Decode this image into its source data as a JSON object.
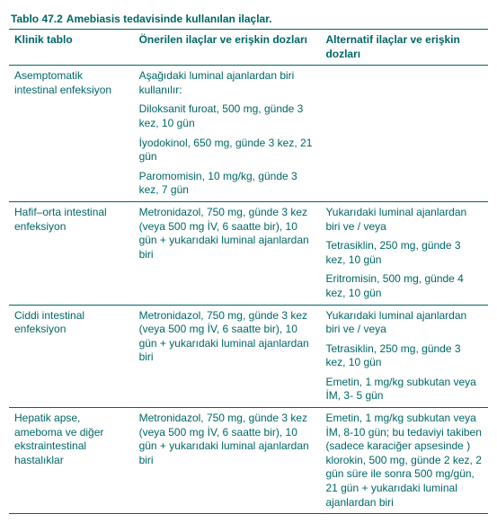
{
  "title_label": "Tablo 47.2",
  "title_text": "Amebiasis tedavisinde kullanılan ilaçlar.",
  "headers": {
    "c1": "Klinik tablo",
    "c2": "Önerilen ilaçlar ve erişkin dozları",
    "c3": "Alternatif ilaçlar ve erişkin dozları"
  },
  "rows": [
    {
      "c1": [
        "Asemptomatik intestinal enfeksiyon"
      ],
      "c2": [
        "Aşağıdaki luminal ajanlardan biri kullanılır:",
        "Diloksanit furoat, 500 mg, günde 3 kez, 10 gün",
        "İyodokinol, 650 mg, günde 3 kez, 21 gün",
        "Paromomisin, 10 mg/kg, günde 3 kez, 7 gün"
      ],
      "c3": []
    },
    {
      "c1": [
        "Hafif–orta intestinal enfeksiyon"
      ],
      "c2": [
        "Metronidazol, 750 mg, günde 3 kez (veya 500 mg İV, 6 saatte bir), 10 gün + yukarıdaki luminal ajanlardan biri"
      ],
      "c3": [
        "Yukarıdaki luminal ajanlardan biri ve / veya",
        "Tetrasiklin, 250 mg, günde 3 kez, 10 gün",
        "Eritromisin, 500 mg, günde 4 kez, 10 gün"
      ]
    },
    {
      "c1": [
        "Ciddi intestinal enfeksiyon"
      ],
      "c2": [
        "Metronidazol, 750 mg, günde 3 kez (veya 500 mg İV, 6 saatte bir), 10 gün + yukarıdaki luminal ajanlardan biri"
      ],
      "c3": [
        "Yukarıdaki luminal ajanlardan biri ve / veya",
        "Tetrasiklin, 250 mg, günde 3 kez, 10 gün",
        "Emetin, 1 mg/kg subkutan veya İM, 3- 5 gün"
      ]
    },
    {
      "c1": [
        "Hepatik apse, ameboma ve diğer ekstraintestinal hastalıklar"
      ],
      "c2": [
        "Metronidazol, 750 mg, günde 3 kez (veya 500 mg İV, 6 saatte bir), 10 gün + yukarıdaki luminal ajanlardan biri"
      ],
      "c3": [
        "Emetin, 1 mg/kg subkutan veya İM, 8-10 gün; bu tedaviyi takiben (sadece karaciğer apsesinde ) klorokin, 500 mg, günde 2 kez, 2 gün süre ile sonra 500 mg/gün, 21 gün + yukarıdaki luminal ajanlardan biri"
      ]
    }
  ]
}
